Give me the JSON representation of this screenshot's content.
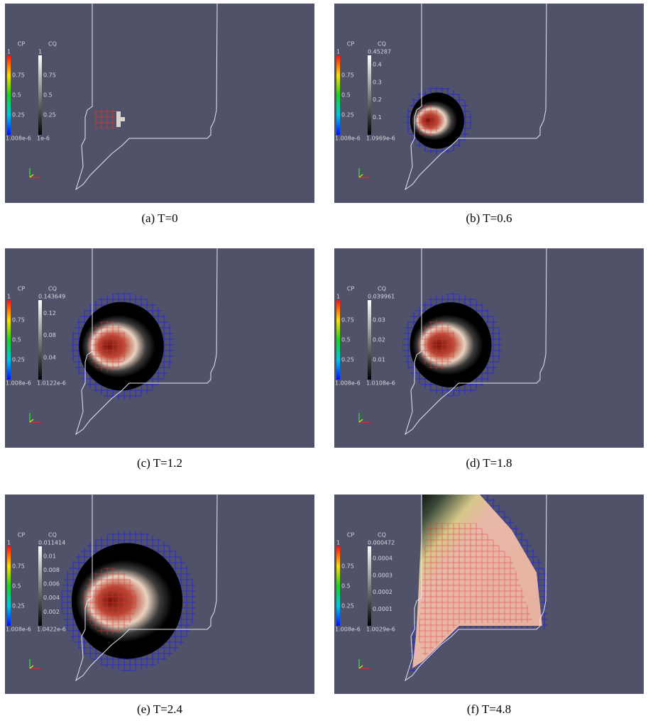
{
  "panels": [
    {
      "caption": "(a) T=0",
      "cp": {
        "title": "CP",
        "labels": [
          "1",
          "0.75",
          "0.5",
          "0.25",
          "1.008e-6"
        ]
      },
      "cq": {
        "title": "CQ",
        "labels": [
          "1",
          "0.75",
          "0.5",
          "0.25",
          "1e-6"
        ]
      }
    },
    {
      "caption": "(b) T=0.6",
      "cp": {
        "title": "CP",
        "labels": [
          "1",
          "0.75",
          "0.5",
          "0.25",
          "1.008e-6"
        ]
      },
      "cq": {
        "title": "CQ",
        "labels": [
          "0.45287",
          "0.4",
          "0.3",
          "0.2",
          "0.1",
          "1.0969e-6"
        ]
      }
    },
    {
      "caption": "(c) T=1.2",
      "cp": {
        "title": "CP",
        "labels": [
          "1",
          "0.75",
          "0.5",
          "0.25",
          "1.008e-6"
        ]
      },
      "cq": {
        "title": "CQ",
        "labels": [
          "0.143649",
          "0.12",
          "0.08",
          "0.04",
          "1.0122e-6"
        ]
      }
    },
    {
      "caption": "(d) T=1.8",
      "cp": {
        "title": "CP",
        "labels": [
          "1",
          "0.75",
          "0.5",
          "0.25",
          "1.008e-6"
        ]
      },
      "cq": {
        "title": "CQ",
        "labels": [
          "0.039961",
          "0.03",
          "0.02",
          "0.01",
          "1.0108e-6"
        ]
      }
    },
    {
      "caption": "(e) T=2.4",
      "cp": {
        "title": "CP",
        "labels": [
          "1",
          "0.75",
          "0.5",
          "0.25",
          "1.008e-6"
        ]
      },
      "cq": {
        "title": "CQ",
        "labels": [
          "0.011414",
          "0.01",
          "0.008",
          "0.006",
          "0.004",
          "0.002",
          "1.0422e-6"
        ]
      }
    },
    {
      "caption": "(f) T=4.8",
      "cp": {
        "title": "CP",
        "labels": [
          "1",
          "0.75",
          "0.5",
          "0.25",
          "1.008e-6"
        ]
      },
      "cq": {
        "title": "CQ",
        "labels": [
          "0.000472",
          "0.0004",
          "0.0003",
          "0.0002",
          "0.0001",
          "1.0029e-6"
        ]
      }
    }
  ]
}
